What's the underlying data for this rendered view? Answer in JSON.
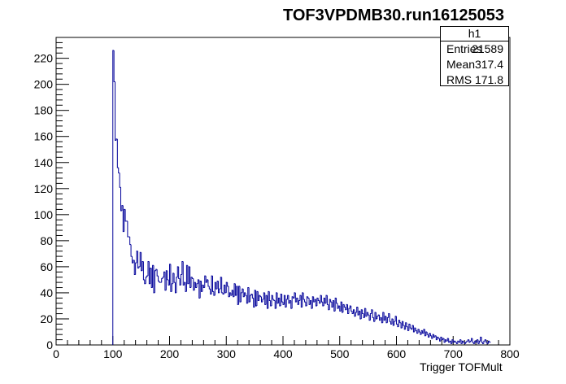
{
  "chart_data": {
    "type": "histogram",
    "title": "TOF3VPDMB30.run16125053",
    "xlabel": "Trigger TOFMult",
    "ylabel": "",
    "xlim": [
      0,
      800
    ],
    "ylim": [
      0,
      236
    ],
    "x_ticks": [
      "0",
      "100",
      "200",
      "300",
      "400",
      "500",
      "600",
      "700",
      "800"
    ],
    "y_ticks": [
      "0",
      "20",
      "40",
      "60",
      "80",
      "100",
      "120",
      "140",
      "160",
      "180",
      "200",
      "220"
    ],
    "line_color": "#000099",
    "grid": false,
    "stats_box": {
      "name": "h1",
      "rows": [
        {
          "label": "Entries",
          "value": "21589"
        },
        {
          "label": "Mean",
          "value": "317.4"
        },
        {
          "label": "RMS",
          "value": "171.8"
        }
      ]
    },
    "bin_width": 2,
    "x_start": 100,
    "values": [
      226,
      202,
      157,
      158,
      136,
      132,
      121,
      103,
      107,
      87,
      104,
      95,
      95,
      83,
      83,
      77,
      68,
      63,
      65,
      54,
      63,
      72,
      59,
      60,
      71,
      57,
      64,
      50,
      47,
      52,
      53,
      64,
      47,
      59,
      44,
      61,
      40,
      57,
      58,
      53,
      49,
      48,
      48,
      51,
      52,
      56,
      42,
      57,
      50,
      46,
      62,
      41,
      47,
      55,
      48,
      40,
      52,
      60,
      51,
      46,
      54,
      64,
      46,
      48,
      41,
      61,
      47,
      60,
      44,
      52,
      51,
      42,
      48,
      44,
      47,
      50,
      36,
      49,
      41,
      46,
      44,
      53,
      48,
      50,
      45,
      43,
      39,
      53,
      41,
      38,
      48,
      43,
      49,
      40,
      43,
      52,
      40,
      39,
      46,
      40,
      48,
      45,
      37,
      40,
      38,
      42,
      37,
      47,
      38,
      45,
      31,
      45,
      33,
      40,
      43,
      37,
      40,
      38,
      32,
      44,
      33,
      38,
      39,
      36,
      29,
      42,
      30,
      41,
      34,
      38,
      37,
      33,
      35,
      40,
      31,
      38,
      28,
      41,
      34,
      30,
      38,
      35,
      34,
      28,
      40,
      32,
      36,
      30,
      39,
      33,
      31,
      38,
      29,
      35,
      38,
      32,
      34,
      28,
      37,
      36,
      40,
      33,
      36,
      31,
      34,
      38,
      29,
      40,
      35,
      33,
      30,
      37,
      36,
      31,
      34,
      28,
      37,
      33,
      35,
      30,
      36,
      34,
      32,
      38,
      33,
      30,
      36,
      32,
      38,
      31,
      27,
      35,
      33,
      29,
      34,
      26,
      36,
      32,
      28,
      30,
      26,
      33,
      25,
      31,
      29,
      27,
      31,
      24,
      28,
      30,
      26,
      24,
      27,
      22,
      25,
      29,
      23,
      26,
      20,
      27,
      24,
      21,
      28,
      22,
      25,
      23,
      19,
      24,
      27,
      21,
      18,
      25,
      20,
      22,
      23,
      19,
      21,
      17,
      25,
      19,
      22,
      17,
      21,
      24,
      18,
      16,
      20,
      15,
      18,
      22,
      16,
      14,
      19,
      17,
      13,
      18,
      15,
      12,
      17,
      14,
      11,
      16,
      13,
      12,
      15,
      10,
      13,
      11,
      9,
      12,
      10,
      8,
      11,
      9,
      12,
      7,
      10,
      8,
      6,
      9,
      7,
      5,
      8,
      6,
      7,
      4,
      6,
      5,
      3,
      6,
      4,
      5,
      2,
      4,
      3,
      5,
      2,
      3,
      1,
      4,
      2,
      3,
      2,
      1,
      3,
      2,
      4,
      1,
      3,
      2,
      1,
      2,
      3,
      4,
      2,
      3,
      5,
      2,
      1,
      3,
      2,
      4,
      1,
      3,
      6,
      2,
      1,
      3,
      4,
      2,
      1,
      3,
      2
    ]
  }
}
